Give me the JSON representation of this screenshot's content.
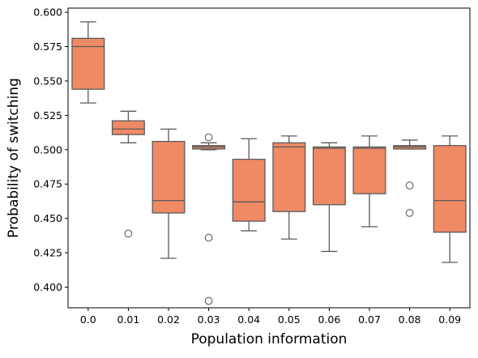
{
  "chart_data": {
    "type": "box",
    "xlabel": "Population information",
    "ylabel": "Probability of switching",
    "ylim": [
      0.385,
      0.603
    ],
    "yticks": [
      0.4,
      0.425,
      0.45,
      0.475,
      0.5,
      0.525,
      0.55,
      0.575,
      0.6
    ],
    "ytick_labels": [
      "0.400",
      "0.425",
      "0.450",
      "0.475",
      "0.500",
      "0.525",
      "0.550",
      "0.575",
      "0.600"
    ],
    "categories": [
      "0.0",
      "0.01",
      "0.02",
      "0.03",
      "0.04",
      "0.05",
      "0.06",
      "0.07",
      "0.08",
      "0.09"
    ],
    "box_color": "#ef8a65",
    "line_color": "#5b5b5b",
    "grid": false,
    "legend": "none",
    "boxes": [
      {
        "whislo": 0.534,
        "q1": 0.544,
        "med": 0.575,
        "q3": 0.581,
        "whishi": 0.593,
        "fliers": []
      },
      {
        "whislo": 0.505,
        "q1": 0.511,
        "med": 0.515,
        "q3": 0.521,
        "whishi": 0.528,
        "fliers": [
          0.439
        ]
      },
      {
        "whislo": 0.421,
        "q1": 0.454,
        "med": 0.463,
        "q3": 0.506,
        "whishi": 0.515,
        "fliers": []
      },
      {
        "whislo": 0.5,
        "q1": 0.5005,
        "med": 0.502,
        "q3": 0.503,
        "whishi": 0.505,
        "fliers": [
          0.509,
          0.436,
          0.39
        ]
      },
      {
        "whislo": 0.441,
        "q1": 0.448,
        "med": 0.462,
        "q3": 0.493,
        "whishi": 0.508,
        "fliers": []
      },
      {
        "whislo": 0.435,
        "q1": 0.455,
        "med": 0.502,
        "q3": 0.505,
        "whishi": 0.51,
        "fliers": []
      },
      {
        "whislo": 0.426,
        "q1": 0.46,
        "med": 0.501,
        "q3": 0.502,
        "whishi": 0.505,
        "fliers": []
      },
      {
        "whislo": 0.444,
        "q1": 0.468,
        "med": 0.501,
        "q3": 0.502,
        "whishi": 0.51,
        "fliers": []
      },
      {
        "whislo": 0.5005,
        "q1": 0.5005,
        "med": 0.502,
        "q3": 0.503,
        "whishi": 0.507,
        "fliers": [
          0.474,
          0.454
        ]
      },
      {
        "whislo": 0.418,
        "q1": 0.44,
        "med": 0.463,
        "q3": 0.503,
        "whishi": 0.51,
        "fliers": []
      }
    ]
  }
}
